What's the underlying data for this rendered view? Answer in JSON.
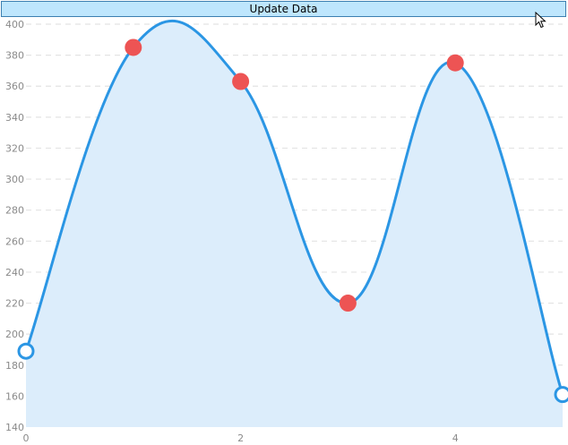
{
  "toolbar": {
    "update_label": "Update Data"
  },
  "chart_data": {
    "type": "area",
    "x": [
      0,
      1,
      2,
      3,
      4,
      5
    ],
    "series": [
      {
        "values": [
          189,
          385,
          363,
          220,
          375,
          161
        ]
      }
    ],
    "xlim": [
      0,
      5
    ],
    "ylim": [
      140,
      400
    ],
    "x_ticks": [
      0,
      2,
      4
    ],
    "y_ticks": [
      140,
      160,
      180,
      200,
      220,
      240,
      260,
      280,
      300,
      320,
      340,
      360,
      380,
      400
    ],
    "grid": "horizontal-dashed",
    "colors": {
      "line": "#2b96e4",
      "fill": "#dcedfb",
      "grid": "#e3e3e3",
      "marker_selected": "#ed5454",
      "axis_text": "#8a8a8a"
    }
  }
}
